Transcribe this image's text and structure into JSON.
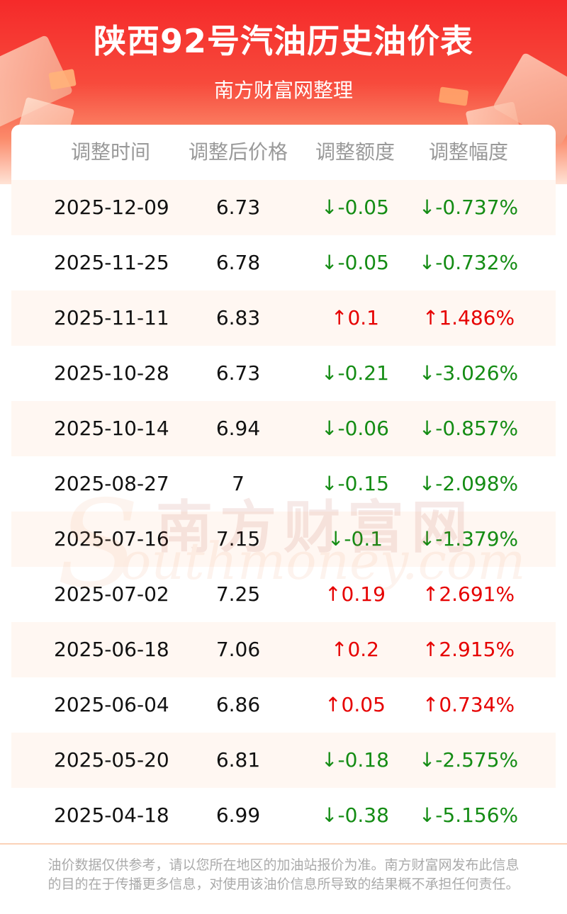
{
  "header": {
    "title": "陕西92号汽油历史油价表",
    "subtitle": "南方财富网整理"
  },
  "table": {
    "columns": [
      "调整时间",
      "调整后价格",
      "调整额度",
      "调整幅度"
    ],
    "rows": [
      {
        "date": "2025-12-09",
        "price": "6.73",
        "amount": "↓-0.05",
        "percent": "↓-0.737%",
        "dir": "down"
      },
      {
        "date": "2025-11-25",
        "price": "6.78",
        "amount": "↓-0.05",
        "percent": "↓-0.732%",
        "dir": "down"
      },
      {
        "date": "2025-11-11",
        "price": "6.83",
        "amount": "↑0.1",
        "percent": "↑1.486%",
        "dir": "up"
      },
      {
        "date": "2025-10-28",
        "price": "6.73",
        "amount": "↓-0.21",
        "percent": "↓-3.026%",
        "dir": "down"
      },
      {
        "date": "2025-10-14",
        "price": "6.94",
        "amount": "↓-0.06",
        "percent": "↓-0.857%",
        "dir": "down"
      },
      {
        "date": "2025-08-27",
        "price": "7",
        "amount": "↓-0.15",
        "percent": "↓-2.098%",
        "dir": "down"
      },
      {
        "date": "2025-07-16",
        "price": "7.15",
        "amount": "↓-0.1",
        "percent": "↓-1.379%",
        "dir": "down"
      },
      {
        "date": "2025-07-02",
        "price": "7.25",
        "amount": "↑0.19",
        "percent": "↑2.691%",
        "dir": "up"
      },
      {
        "date": "2025-06-18",
        "price": "7.06",
        "amount": "↑0.2",
        "percent": "↑2.915%",
        "dir": "up"
      },
      {
        "date": "2025-06-04",
        "price": "6.86",
        "amount": "↑0.05",
        "percent": "↑0.734%",
        "dir": "up"
      },
      {
        "date": "2025-05-20",
        "price": "6.81",
        "amount": "↓-0.18",
        "percent": "↓-2.575%",
        "dir": "down"
      },
      {
        "date": "2025-04-18",
        "price": "6.99",
        "amount": "↓-0.38",
        "percent": "↓-5.156%",
        "dir": "down"
      }
    ]
  },
  "watermark": {
    "cn": "南方财富网",
    "en": "outhmoney.com",
    "s": "S"
  },
  "footer": {
    "disclaimer": "油价数据仅供参考，请以您所在地区的加油站报价为准。南方财富网发布此信息的目的在于传播更多信息，对使用该油价信息所导致的结果概不承担任何责任。"
  },
  "colors": {
    "up": "#e60000",
    "down": "#148c14",
    "header_red": "#f52a2a",
    "row_alt": "#fff7f2"
  }
}
